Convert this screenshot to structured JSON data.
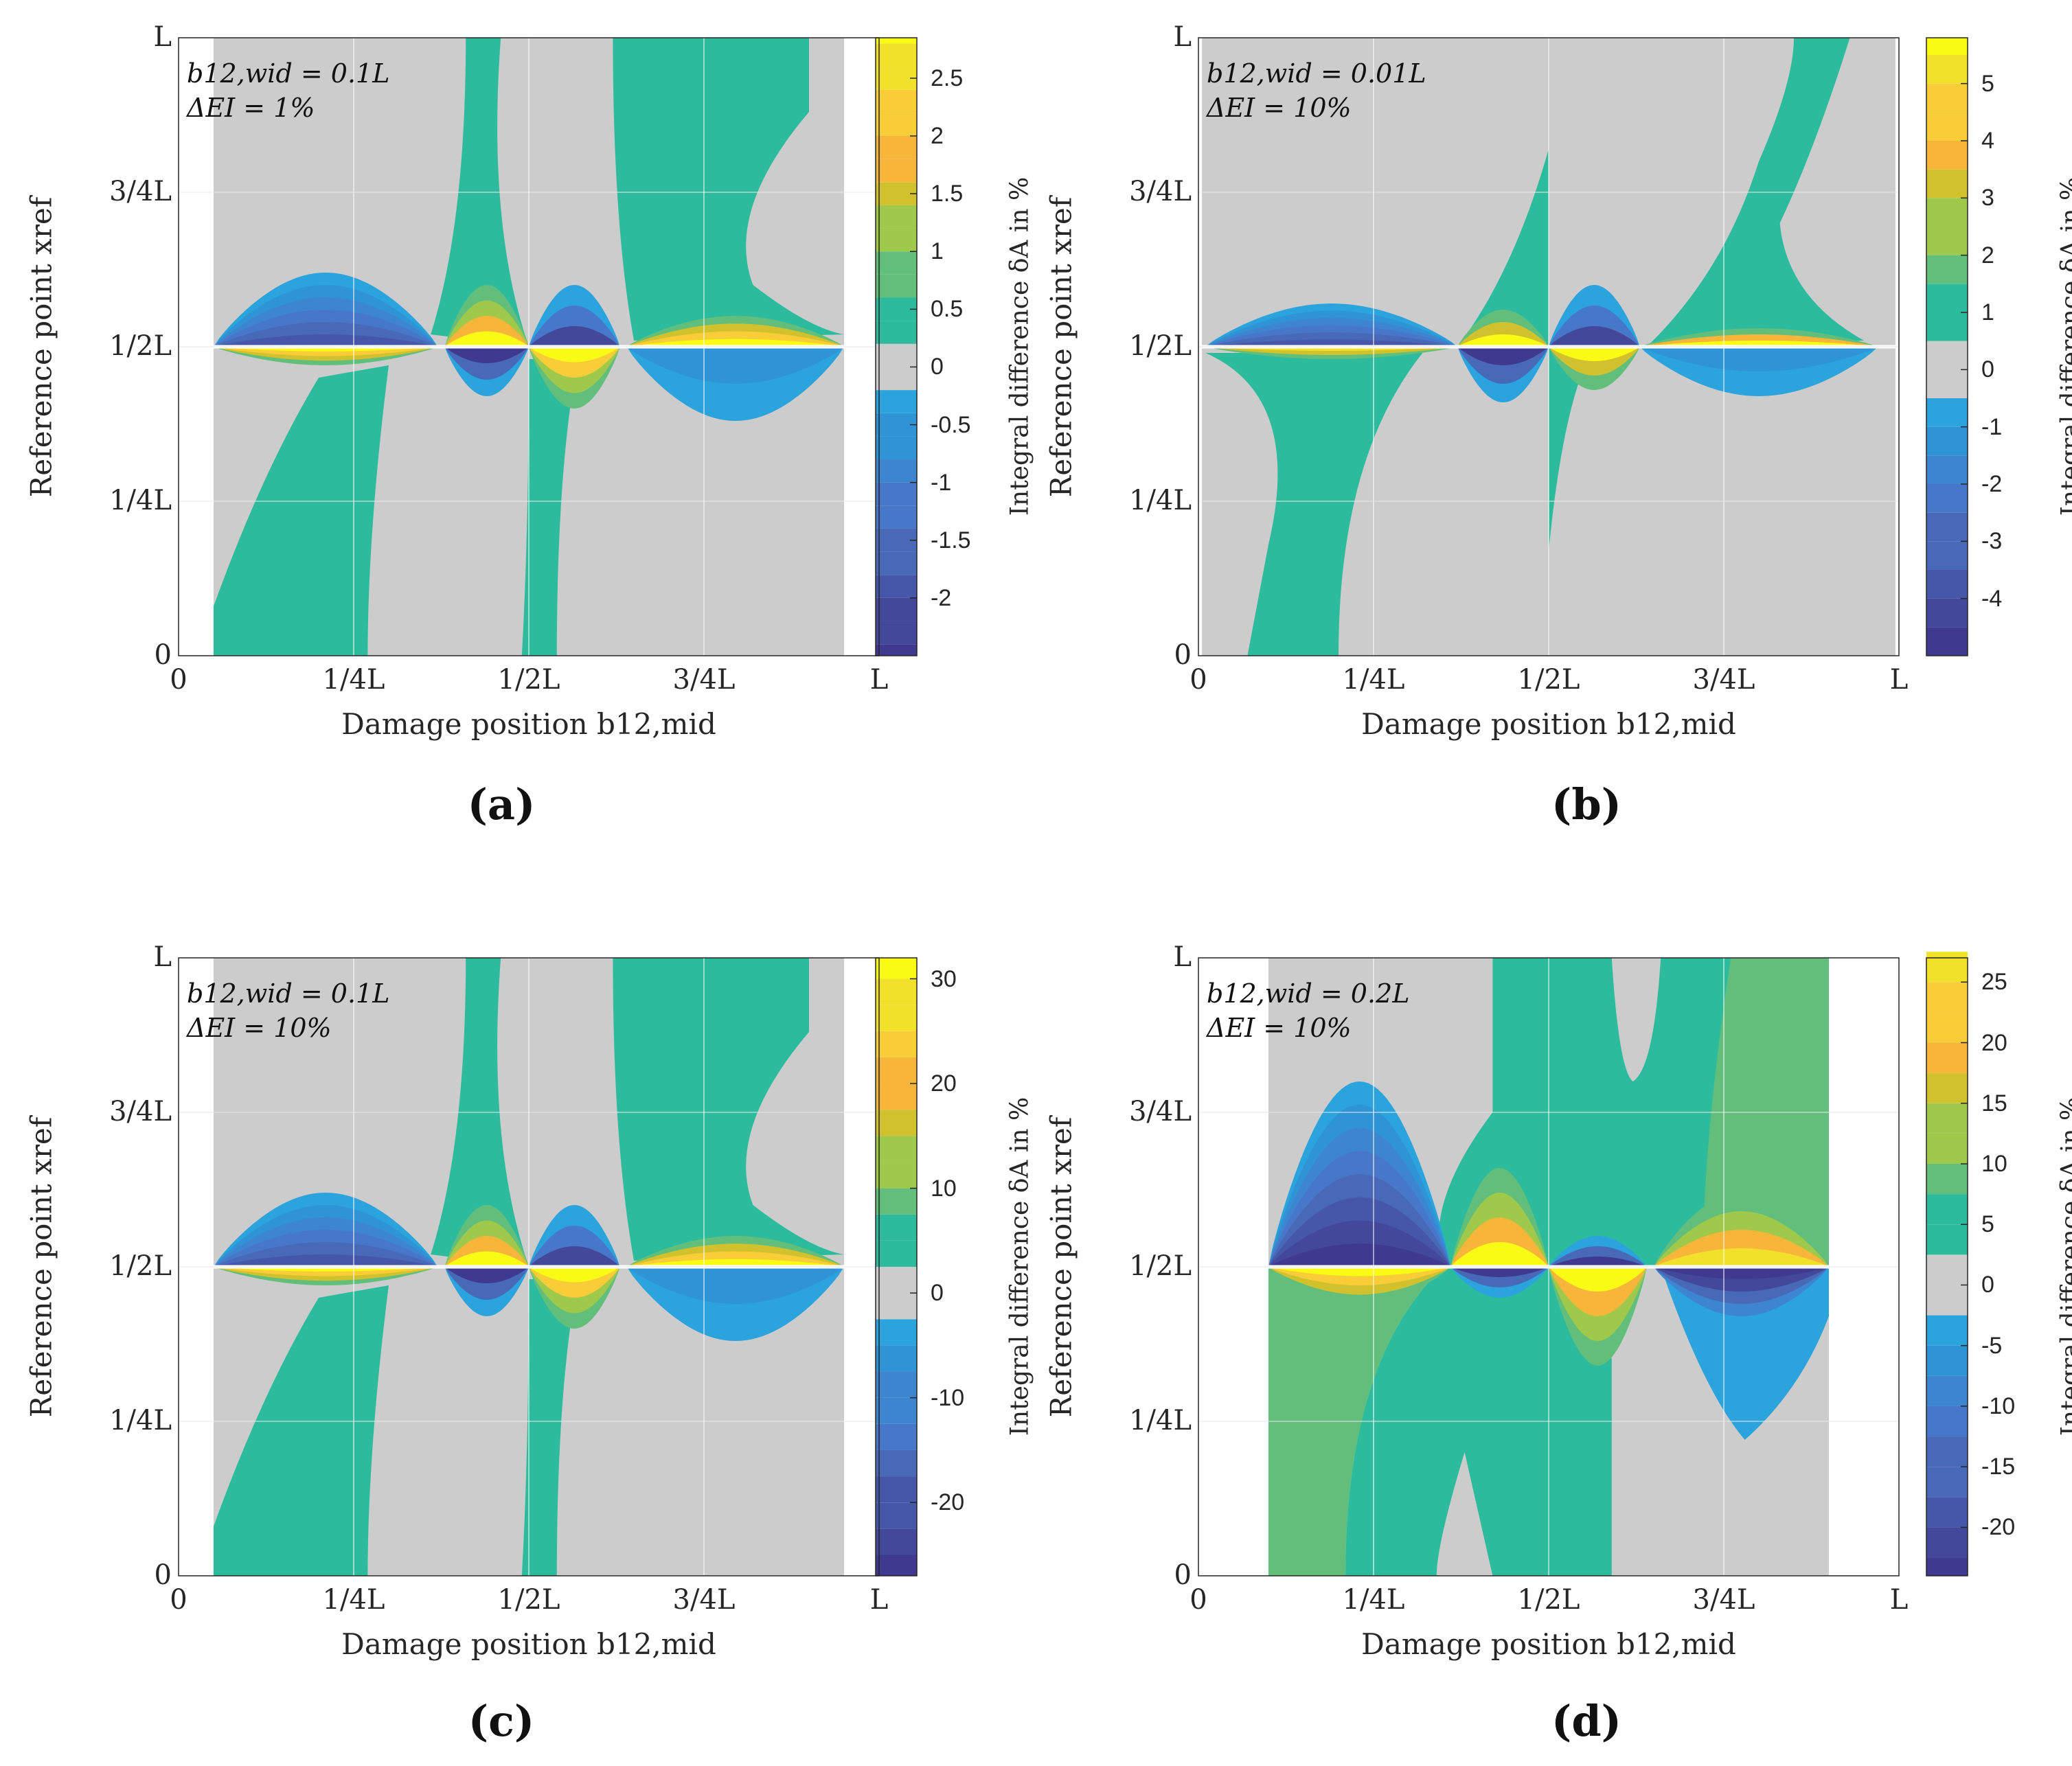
{
  "chart_data": [
    {
      "panel": "a",
      "panel_label": "(a)",
      "type": "heatmap",
      "xlabel": "Damage position b12,mid",
      "ylabel": "Reference point xref",
      "x_ticks": [
        "0",
        "1/4L",
        "1/2L",
        "3/4L",
        "L"
      ],
      "y_ticks": [
        "0",
        "1/4L",
        "1/2L",
        "3/4L",
        "L"
      ],
      "annotation": [
        "b12,wid = 0.1L",
        "ΔEI = 1%"
      ],
      "x_data_range": [
        0.05,
        0.95
      ],
      "colorbar": {
        "label": "Integral difference δA in %",
        "ticks": [
          "2.5",
          "2",
          "1.5",
          "1",
          "0.5",
          "0",
          "-0.5",
          "-1",
          "-1.5",
          "-2"
        ],
        "levels": [
          -2.4,
          -2.2,
          -2.0,
          -1.8,
          -1.6,
          -1.4,
          -1.2,
          -1.0,
          -0.8,
          -0.6,
          -0.4,
          -0.2,
          0.2,
          0.4,
          0.6,
          0.8,
          1.0,
          1.2,
          1.4,
          1.6,
          1.8,
          2.0,
          2.2,
          2.4,
          2.6,
          2.8
        ],
        "range": [
          -2.5,
          2.85
        ]
      }
    },
    {
      "panel": "b",
      "panel_label": "(b)",
      "type": "heatmap",
      "xlabel": "Damage position b12,mid",
      "ylabel": "Reference point xref",
      "x_ticks": [
        "0",
        "1/4L",
        "1/2L",
        "3/4L",
        "L"
      ],
      "y_ticks": [
        "0",
        "1/4L",
        "1/2L",
        "3/4L",
        "L"
      ],
      "annotation": [
        "b12,wid = 0.01L",
        "ΔEI = 10%"
      ],
      "x_data_range": [
        0.005,
        0.995
      ],
      "colorbar": {
        "label": "Integral difference δA in %",
        "ticks": [
          "5",
          "4",
          "3",
          "2",
          "1",
          "0",
          "-1",
          "-2",
          "-3",
          "-4"
        ],
        "levels": [
          -4.5,
          -4.0,
          -3.5,
          -3.0,
          -2.5,
          -2.0,
          -1.5,
          -1.0,
          -0.5,
          0.5,
          1.0,
          1.5,
          2.0,
          2.5,
          3.0,
          3.5,
          4.0,
          4.5,
          5.0,
          5.5
        ],
        "range": [
          -5.0,
          5.8
        ]
      }
    },
    {
      "panel": "c",
      "panel_label": "(c)",
      "type": "heatmap",
      "xlabel": "Damage position b12,mid",
      "ylabel": "Reference point xref",
      "x_ticks": [
        "0",
        "1/4L",
        "1/2L",
        "3/4L",
        "L"
      ],
      "y_ticks": [
        "0",
        "1/4L",
        "1/2L",
        "3/4L",
        "L"
      ],
      "annotation": [
        "b12,wid = 0.1L",
        "ΔEI = 10%"
      ],
      "x_data_range": [
        0.05,
        0.95
      ],
      "colorbar": {
        "label": "Integral difference δA in %",
        "ticks": [
          "30",
          "20",
          "10",
          "0",
          "-10",
          "-20"
        ],
        "levels": [
          -25,
          -22.5,
          -20,
          -17.5,
          -15,
          -12.5,
          -10,
          -7.5,
          -5,
          -2.5,
          2.5,
          5,
          7.5,
          10,
          12.5,
          15,
          17.5,
          20,
          22.5,
          25,
          27.5,
          30
        ],
        "range": [
          -27,
          32
        ]
      }
    },
    {
      "panel": "d",
      "panel_label": "(d)",
      "type": "heatmap",
      "xlabel": "Damage position b12,mid",
      "ylabel": "Reference point xref",
      "x_ticks": [
        "0",
        "1/4L",
        "1/2L",
        "3/4L",
        "L"
      ],
      "y_ticks": [
        "0",
        "1/4L",
        "1/2L",
        "3/4L",
        "L"
      ],
      "annotation": [
        "b12,wid = 0.2L",
        "ΔEI = 10%"
      ],
      "x_data_range": [
        0.1,
        0.9
      ],
      "colorbar": {
        "label": "Integral difference δA in %",
        "ticks": [
          "25",
          "20",
          "15",
          "10",
          "5",
          "0",
          "-5",
          "-10",
          "-15",
          "-20"
        ],
        "levels": [
          -22.5,
          -20,
          -17.5,
          -15,
          -12.5,
          -10,
          -7.5,
          -5,
          -2.5,
          2.5,
          5,
          7.5,
          10,
          12.5,
          15,
          17.5,
          20,
          22.5,
          25,
          27.5
        ],
        "range": [
          -24,
          27
        ]
      }
    }
  ],
  "colors": {
    "neutral": "#cccccc",
    "negative": [
      "#2ba3dd",
      "#2f94d5",
      "#3d85ce",
      "#4777c9",
      "#4868b8",
      "#4657a9",
      "#44489a",
      "#3f3990"
    ],
    "positive": [
      "#2cbc9d",
      "#62bf7b",
      "#9ec94a",
      "#d1c12d",
      "#f7b63a",
      "#f8cd37",
      "#f2e12a",
      "#f9fb15"
    ],
    "grid": "#ffffff",
    "text": "#262626"
  }
}
